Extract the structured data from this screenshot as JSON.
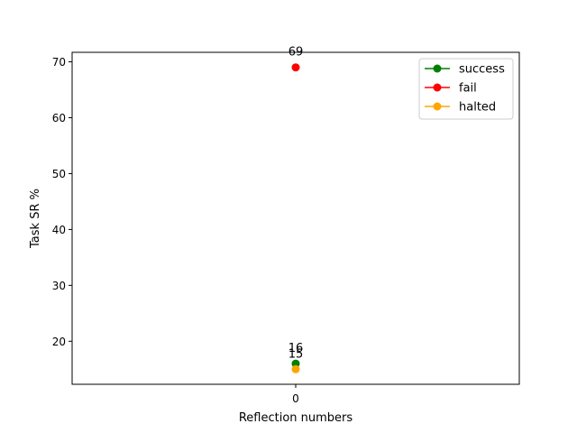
{
  "chart_data": {
    "type": "line",
    "x": [
      0
    ],
    "xticks": [
      "0"
    ],
    "xlabel": "Reflection numbers",
    "ylabel": "Task SR %",
    "ylim": [
      12.3,
      71.7
    ],
    "xlim": [
      -0.055,
      0.055
    ],
    "yticks": [
      20,
      30,
      40,
      50,
      60,
      70
    ],
    "grid": false,
    "legend_position": "top-right",
    "series": [
      {
        "name": "success",
        "values": [
          16
        ],
        "labels": [
          "16"
        ],
        "color": "#008000"
      },
      {
        "name": "fail",
        "values": [
          69
        ],
        "labels": [
          "69"
        ],
        "color": "#ff0000"
      },
      {
        "name": "halted",
        "values": [
          15
        ],
        "labels": [
          "15"
        ],
        "color": "#ffa500"
      }
    ]
  }
}
